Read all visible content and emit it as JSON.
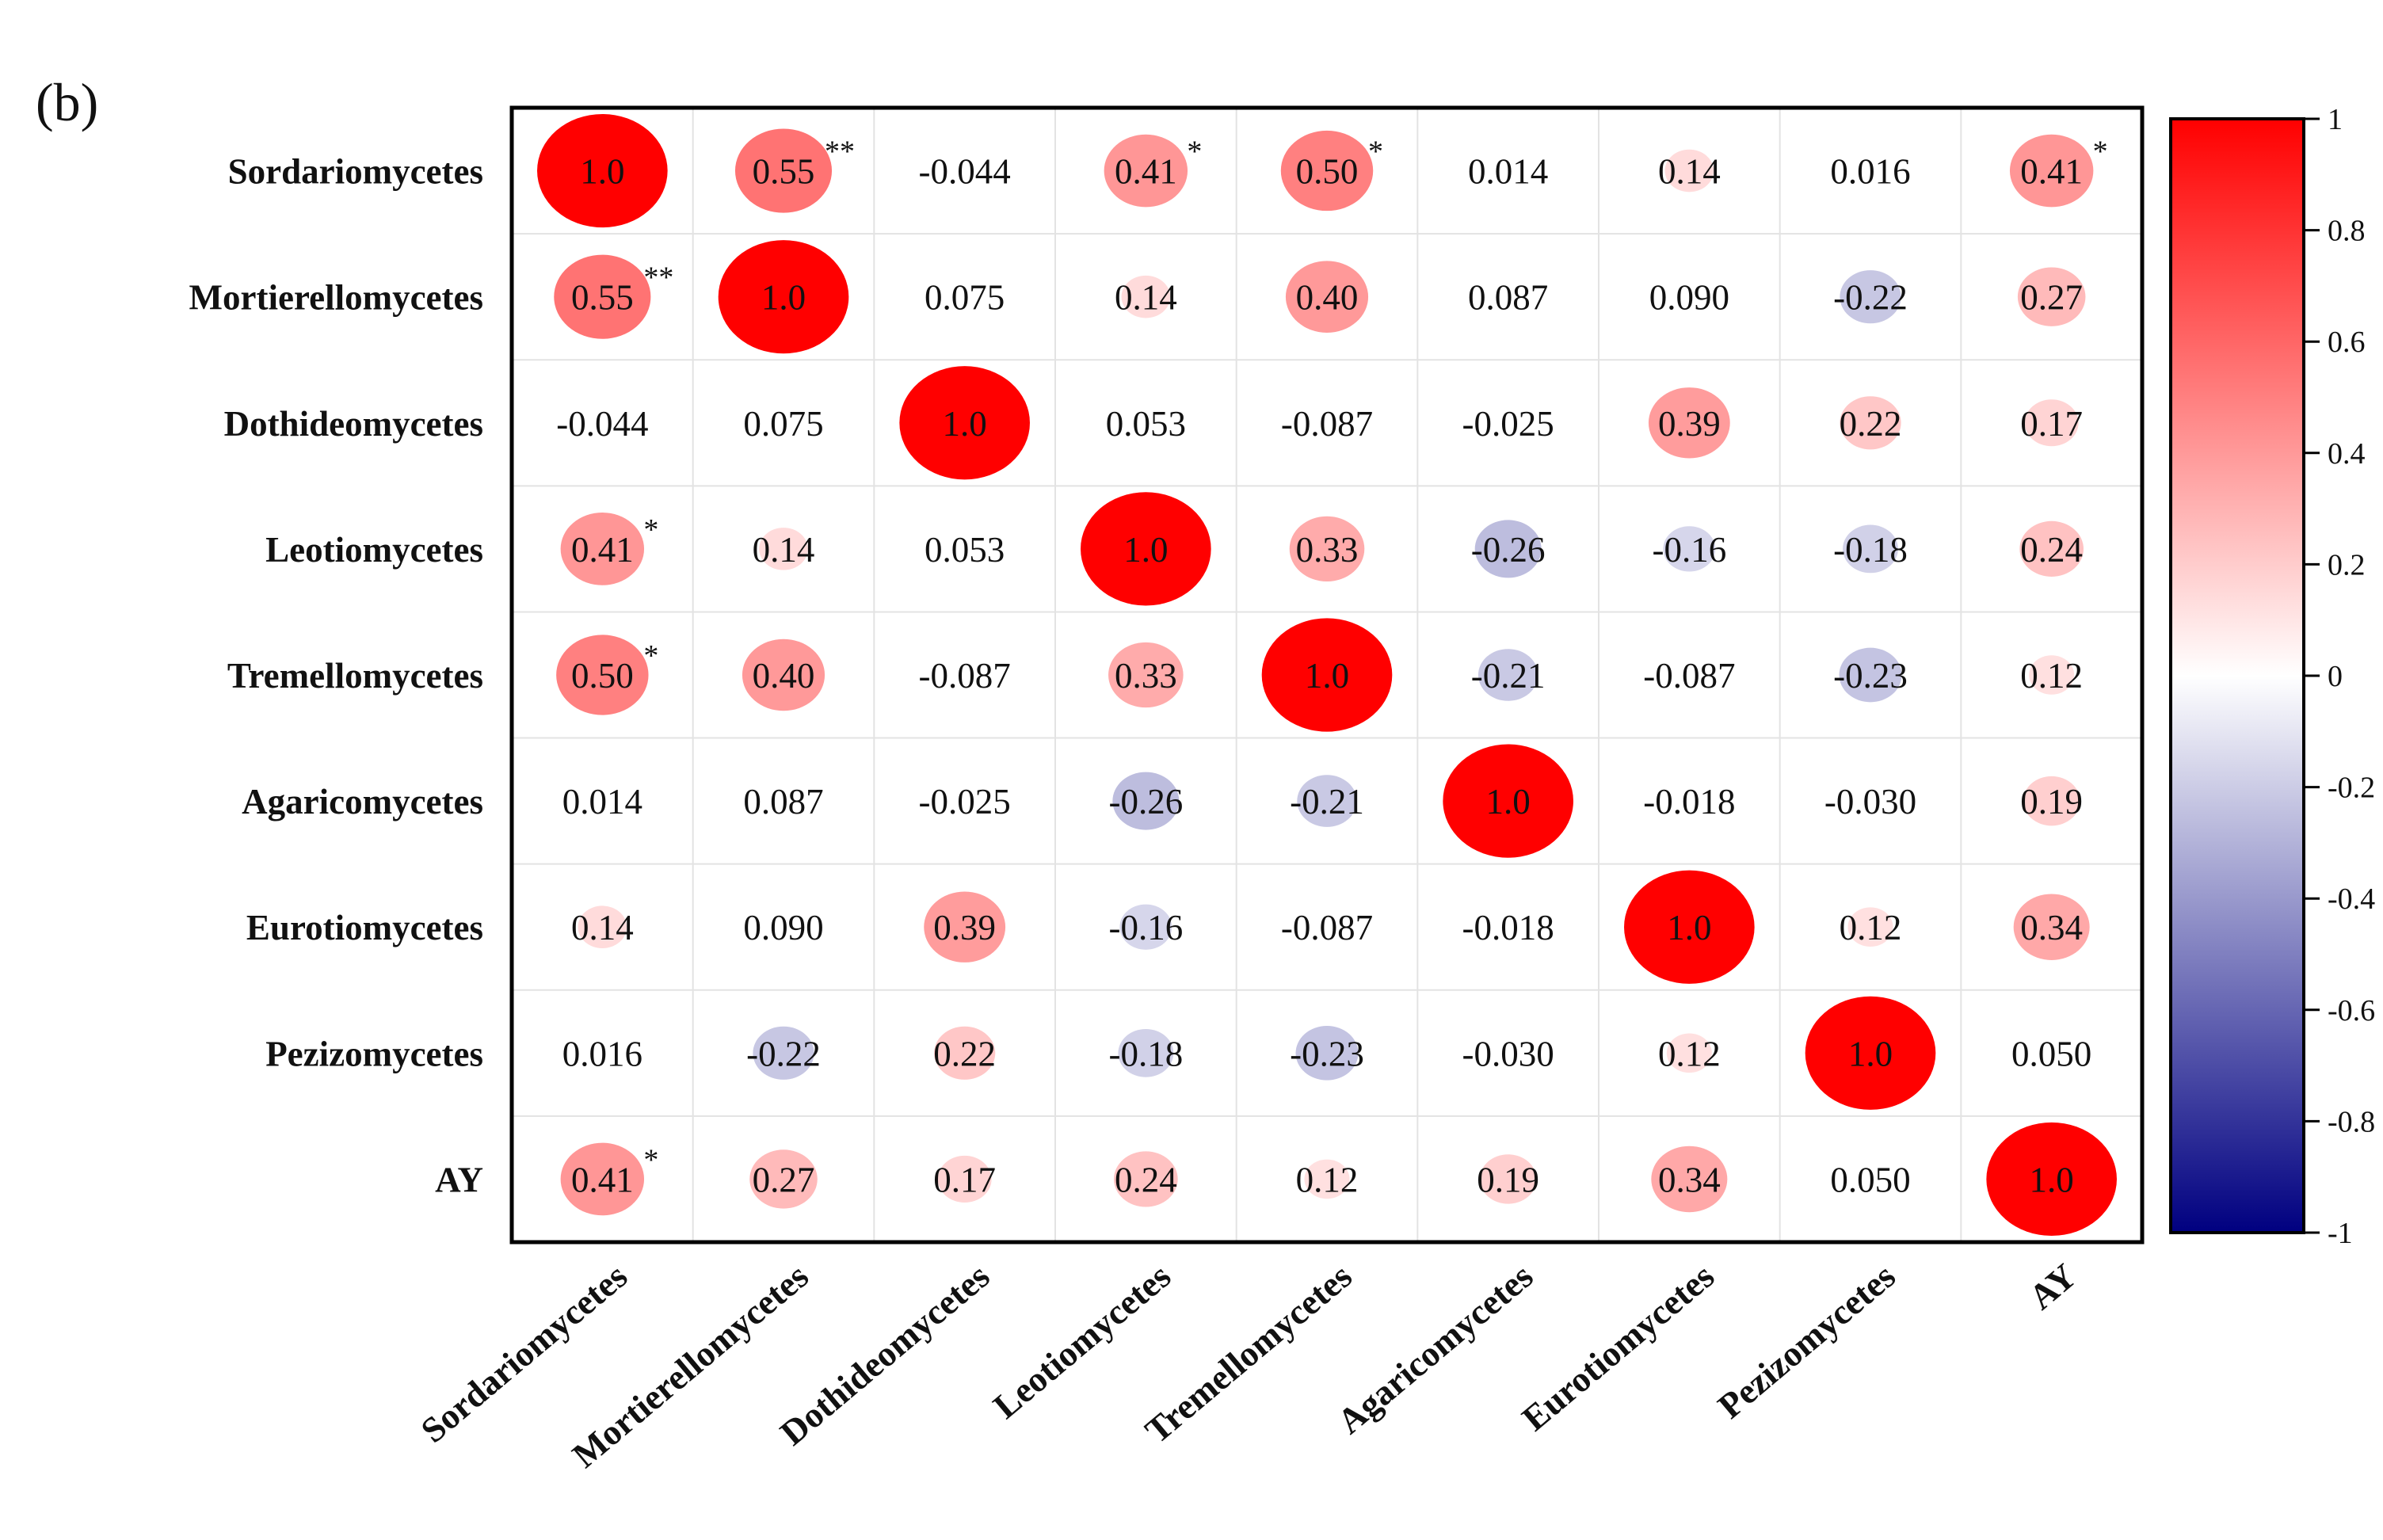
{
  "panel_label": "(b)",
  "chart_data": {
    "type": "heatmap",
    "title": "",
    "xlabel": "",
    "ylabel": "",
    "labels": [
      "Sordariomycetes",
      "Mortierellomycetes",
      "Dothideomycetes",
      "Leotiomycetes",
      "Tremellomycetes",
      "Agaricomycetes",
      "Eurotiomycetes",
      "Pezizomycetes",
      "AY"
    ],
    "matrix": [
      [
        1.0,
        0.55,
        -0.044,
        0.41,
        0.5,
        0.014,
        0.14,
        0.016,
        0.41
      ],
      [
        0.55,
        1.0,
        0.075,
        0.14,
        0.4,
        0.087,
        0.09,
        -0.22,
        0.27
      ],
      [
        -0.044,
        0.075,
        1.0,
        0.053,
        -0.087,
        -0.025,
        0.39,
        0.22,
        0.17
      ],
      [
        0.41,
        0.14,
        0.053,
        1.0,
        0.33,
        -0.26,
        -0.16,
        -0.18,
        0.24
      ],
      [
        0.5,
        0.4,
        -0.087,
        0.33,
        1.0,
        -0.21,
        -0.087,
        -0.23,
        0.12
      ],
      [
        0.014,
        0.087,
        -0.025,
        -0.26,
        -0.21,
        1.0,
        -0.018,
        -0.03,
        0.19
      ],
      [
        0.14,
        0.09,
        0.39,
        -0.16,
        -0.087,
        -0.018,
        1.0,
        0.12,
        0.34
      ],
      [
        0.016,
        -0.22,
        0.22,
        -0.18,
        -0.23,
        -0.03,
        0.12,
        1.0,
        0.05
      ],
      [
        0.41,
        0.27,
        0.17,
        0.24,
        0.12,
        0.19,
        0.34,
        0.05,
        1.0
      ]
    ],
    "display": [
      [
        "1.0",
        "0.55",
        "-0.044",
        "0.41",
        "0.50",
        "0.014",
        "0.14",
        "0.016",
        "0.41"
      ],
      [
        "0.55",
        "1.0",
        "0.075",
        "0.14",
        "0.40",
        "0.087",
        "0.090",
        "-0.22",
        "0.27"
      ],
      [
        "-0.044",
        "0.075",
        "1.0",
        "0.053",
        "-0.087",
        "-0.025",
        "0.39",
        "0.22",
        "0.17"
      ],
      [
        "0.41",
        "0.14",
        "0.053",
        "1.0",
        "0.33",
        "-0.26",
        "-0.16",
        "-0.18",
        "0.24"
      ],
      [
        "0.50",
        "0.40",
        "-0.087",
        "0.33",
        "1.0",
        "-0.21",
        "-0.087",
        "-0.23",
        "0.12"
      ],
      [
        "0.014",
        "0.087",
        "-0.025",
        "-0.26",
        "-0.21",
        "1.0",
        "-0.018",
        "-0.030",
        "0.19"
      ],
      [
        "0.14",
        "0.090",
        "0.39",
        "-0.16",
        "-0.087",
        "-0.018",
        "1.0",
        "0.12",
        "0.34"
      ],
      [
        "0.016",
        "-0.22",
        "0.22",
        "-0.18",
        "-0.23",
        "-0.030",
        "0.12",
        "1.0",
        "0.050"
      ],
      [
        "0.41",
        "0.27",
        "0.17",
        "0.24",
        "0.12",
        "0.19",
        "0.34",
        "0.050",
        "1.0"
      ]
    ],
    "significance": [
      [
        "",
        "**",
        "",
        "*",
        "*",
        "",
        "",
        "",
        "*"
      ],
      [
        "**",
        "",
        "",
        "",
        "",
        "",
        "",
        "",
        ""
      ],
      [
        "",
        "",
        "",
        "",
        "",
        "",
        "",
        "",
        ""
      ],
      [
        "*",
        "",
        "",
        "",
        "",
        "",
        "",
        "",
        ""
      ],
      [
        "*",
        "",
        "",
        "",
        "",
        "",
        "",
        "",
        ""
      ],
      [
        "",
        "",
        "",
        "",
        "",
        "",
        "",
        "",
        ""
      ],
      [
        "",
        "",
        "",
        "",
        "",
        "",
        "",
        "",
        ""
      ],
      [
        "",
        "",
        "",
        "",
        "",
        "",
        "",
        "",
        ""
      ],
      [
        "*",
        "",
        "",
        "",
        "",
        "",
        "",
        "",
        ""
      ]
    ],
    "value_range": [
      -1,
      1
    ],
    "colorbar": {
      "ticks": [
        1,
        0.8,
        0.6,
        0.4,
        0.2,
        0,
        -0.2,
        -0.4,
        -0.6,
        -0.8,
        -1
      ],
      "tick_labels": [
        "1",
        "0.8",
        "0.6",
        "0.4",
        "0.2",
        "0",
        "-0.2",
        "-0.4",
        "-0.6",
        "-0.8",
        "-1"
      ],
      "colors": {
        "high": "#ff0000",
        "mid": "#ffffff",
        "low": "#000080"
      }
    },
    "grid": true
  }
}
